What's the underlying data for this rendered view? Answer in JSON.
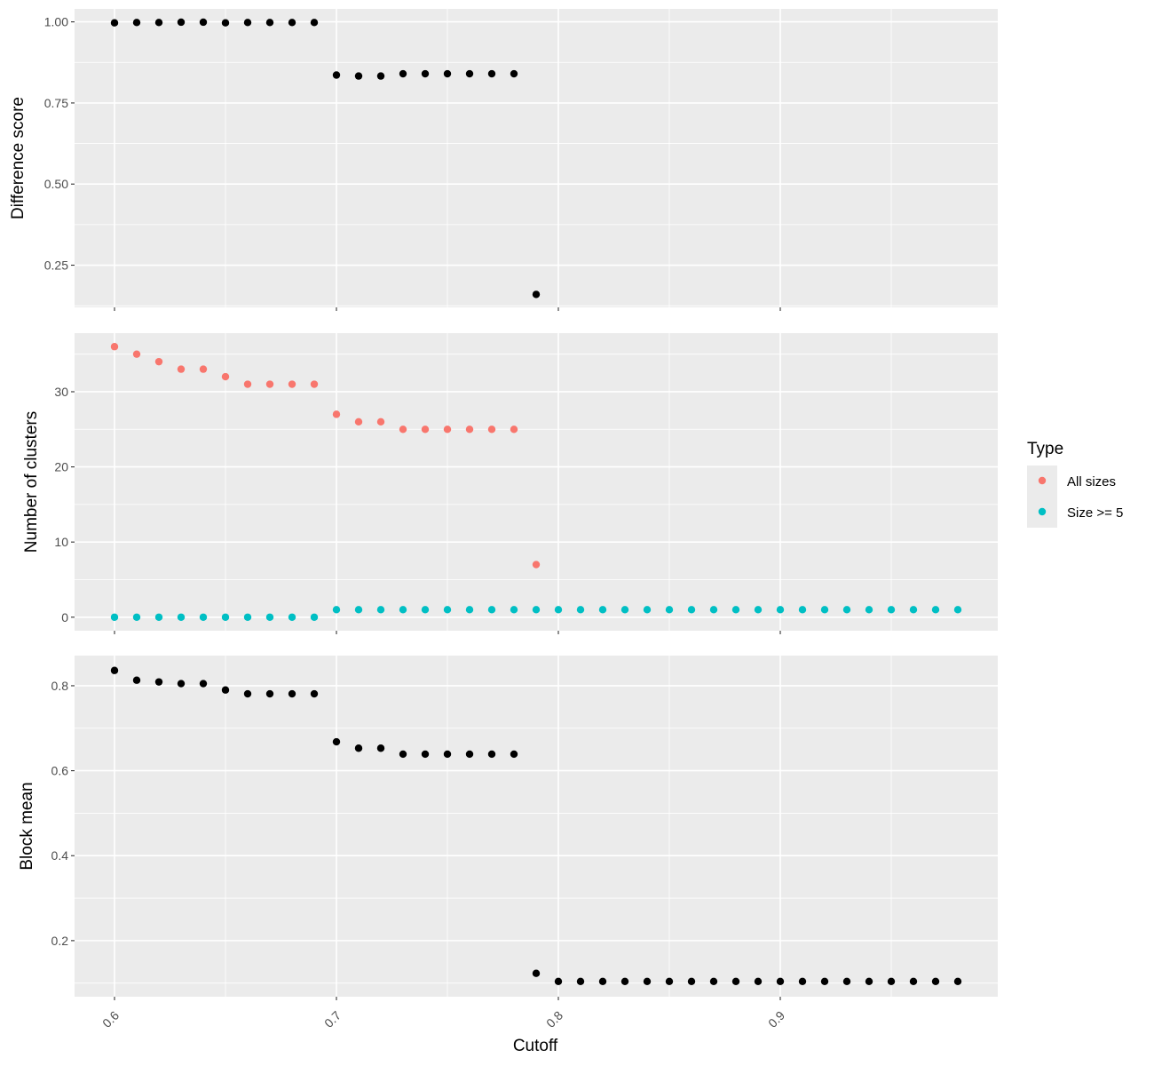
{
  "chart_data": {
    "type": "scatter",
    "xlabel": "Cutoff",
    "x_ticks": [
      0.6,
      0.7,
      0.8,
      0.9
    ],
    "x_tick_labels": [
      "0.6",
      "0.7",
      "0.8",
      "0.9"
    ],
    "xlim": [
      0.582,
      0.998
    ],
    "grid": true,
    "legend": {
      "title": "Type",
      "placement": "right",
      "entries": [
        {
          "name": "All sizes",
          "color": "#F8766D"
        },
        {
          "name": "Size >= 5",
          "color": "#00BFC4"
        }
      ]
    },
    "panels": [
      {
        "id": "difference",
        "ylabel": "Difference score",
        "ylim": [
          0.12,
          1.04
        ],
        "y_ticks": [
          0.25,
          0.5,
          0.75,
          1.0
        ],
        "y_tick_labels": [
          "0.25",
          "0.50",
          "0.75",
          "1.00"
        ],
        "series": [
          {
            "color": "#000000",
            "x": [
              0.6,
              0.61,
              0.62,
              0.63,
              0.64,
              0.65,
              0.66,
              0.67,
              0.68,
              0.69,
              0.7,
              0.71,
              0.72,
              0.73,
              0.74,
              0.75,
              0.76,
              0.77,
              0.78,
              0.79
            ],
            "y": [
              0.997,
              0.998,
              0.998,
              0.999,
              0.999,
              0.997,
              0.998,
              0.998,
              0.998,
              0.998,
              0.836,
              0.833,
              0.833,
              0.84,
              0.84,
              0.84,
              0.84,
              0.84,
              0.84,
              0.16
            ]
          }
        ]
      },
      {
        "id": "clusters",
        "ylabel": "Number of clusters",
        "ylim": [
          -1.8,
          37.8
        ],
        "y_ticks": [
          0,
          10,
          20,
          30
        ],
        "y_tick_labels": [
          "0",
          "10",
          "20",
          "30"
        ],
        "series": [
          {
            "name": "All sizes",
            "color": "#F8766D",
            "x": [
              0.6,
              0.61,
              0.62,
              0.63,
              0.64,
              0.65,
              0.66,
              0.67,
              0.68,
              0.69,
              0.7,
              0.71,
              0.72,
              0.73,
              0.74,
              0.75,
              0.76,
              0.77,
              0.78,
              0.79
            ],
            "y": [
              36,
              35,
              34,
              33,
              33,
              32,
              31,
              31,
              31,
              31,
              27,
              26,
              26,
              25,
              25,
              25,
              25,
              25,
              25,
              7
            ]
          },
          {
            "name": "Size >= 5",
            "color": "#00BFC4",
            "x": [
              0.6,
              0.61,
              0.62,
              0.63,
              0.64,
              0.65,
              0.66,
              0.67,
              0.68,
              0.69,
              0.7,
              0.71,
              0.72,
              0.73,
              0.74,
              0.75,
              0.76,
              0.77,
              0.78,
              0.79,
              0.8,
              0.81,
              0.82,
              0.83,
              0.84,
              0.85,
              0.86,
              0.87,
              0.88,
              0.89,
              0.9,
              0.91,
              0.92,
              0.93,
              0.94,
              0.95,
              0.96,
              0.97,
              0.98
            ],
            "y": [
              0,
              0,
              0,
              0,
              0,
              0,
              0,
              0,
              0,
              0,
              1,
              1,
              1,
              1,
              1,
              1,
              1,
              1,
              1,
              1,
              1,
              1,
              1,
              1,
              1,
              1,
              1,
              1,
              1,
              1,
              1,
              1,
              1,
              1,
              1,
              1,
              1,
              1,
              1
            ]
          }
        ]
      },
      {
        "id": "blockmean",
        "ylabel": "Block mean",
        "ylim": [
          0.068,
          0.871
        ],
        "y_ticks": [
          0.2,
          0.4,
          0.6,
          0.8
        ],
        "y_tick_labels": [
          "0.2",
          "0.4",
          "0.6",
          "0.8"
        ],
        "series": [
          {
            "color": "#000000",
            "x": [
              0.6,
              0.61,
              0.62,
              0.63,
              0.64,
              0.65,
              0.66,
              0.67,
              0.68,
              0.69,
              0.7,
              0.71,
              0.72,
              0.73,
              0.74,
              0.75,
              0.76,
              0.77,
              0.78,
              0.79,
              0.8,
              0.81,
              0.82,
              0.83,
              0.84,
              0.85,
              0.86,
              0.87,
              0.88,
              0.89,
              0.9,
              0.91,
              0.92,
              0.93,
              0.94,
              0.95,
              0.96,
              0.97,
              0.98
            ],
            "y": [
              0.836,
              0.813,
              0.809,
              0.805,
              0.805,
              0.79,
              0.781,
              0.781,
              0.781,
              0.781,
              0.668,
              0.653,
              0.653,
              0.639,
              0.639,
              0.639,
              0.639,
              0.639,
              0.639,
              0.123,
              0.104,
              0.104,
              0.104,
              0.104,
              0.104,
              0.104,
              0.104,
              0.104,
              0.104,
              0.104,
              0.104,
              0.104,
              0.104,
              0.104,
              0.104,
              0.104,
              0.104,
              0.104,
              0.104
            ]
          }
        ]
      }
    ]
  }
}
